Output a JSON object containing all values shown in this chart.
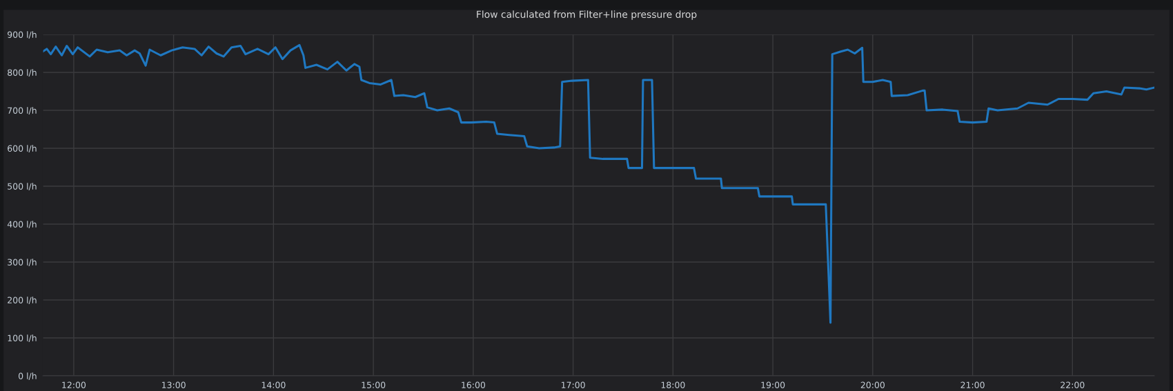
{
  "chart_data": {
    "type": "line",
    "title": "Flow calculated from Filter+line pressure drop",
    "x": [
      11.69,
      11.73,
      11.77,
      11.82,
      11.88,
      11.93,
      11.99,
      12.04,
      12.16,
      12.23,
      12.34,
      12.46,
      12.53,
      12.61,
      12.66,
      12.72,
      12.76,
      12.87,
      12.98,
      13.09,
      13.21,
      13.28,
      13.35,
      13.43,
      13.5,
      13.58,
      13.67,
      13.72,
      13.84,
      13.95,
      14.02,
      14.09,
      14.17,
      14.26,
      14.3,
      14.32,
      14.43,
      14.54,
      14.64,
      14.73,
      14.81,
      14.86,
      14.88,
      14.96,
      15.07,
      15.18,
      15.21,
      15.3,
      15.42,
      15.51,
      15.54,
      15.64,
      15.76,
      15.85,
      15.88,
      15.98,
      16.13,
      16.21,
      16.24,
      16.36,
      16.51,
      16.54,
      16.66,
      16.81,
      16.87,
      16.89,
      16.99,
      17.15,
      17.17,
      17.3,
      17.54,
      17.555,
      17.69,
      17.7,
      17.79,
      17.81,
      18.0,
      18.21,
      18.23,
      18.48,
      18.49,
      18.7,
      18.85,
      18.865,
      19.19,
      19.2,
      19.53,
      19.577,
      19.595,
      19.68,
      19.75,
      19.82,
      19.895,
      19.906,
      20.0,
      20.1,
      20.18,
      20.19,
      20.35,
      20.5,
      20.52,
      20.54,
      20.7,
      20.85,
      20.87,
      21.0,
      21.14,
      21.16,
      21.25,
      21.45,
      21.56,
      21.75,
      21.86,
      22.0,
      22.15,
      22.21,
      22.34,
      22.49,
      22.52,
      22.67,
      22.74,
      22.82
    ],
    "series": [
      {
        "color": "#1f78c1",
        "values": [
          855,
          862,
          848,
          868,
          845,
          870,
          848,
          866,
          842,
          860,
          853,
          858,
          845,
          858,
          850,
          818,
          860,
          845,
          858,
          866,
          862,
          845,
          868,
          850,
          842,
          866,
          870,
          848,
          862,
          848,
          866,
          835,
          858,
          872,
          845,
          812,
          820,
          808,
          828,
          805,
          822,
          815,
          780,
          772,
          768,
          780,
          738,
          740,
          735,
          745,
          708,
          700,
          705,
          695,
          668,
          668,
          670,
          668,
          638,
          635,
          632,
          605,
          600,
          602,
          605,
          775,
          778,
          780,
          575,
          572,
          572,
          548,
          548,
          780,
          780,
          548,
          548,
          548,
          520,
          520,
          495,
          495,
          495,
          473,
          473,
          452,
          452,
          140,
          848,
          855,
          860,
          850,
          865,
          775,
          775,
          780,
          775,
          738,
          740,
          752,
          752,
          700,
          702,
          698,
          670,
          668,
          670,
          705,
          700,
          705,
          720,
          715,
          730,
          730,
          728,
          745,
          750,
          742,
          760,
          758,
          755,
          760
        ]
      }
    ],
    "xlim": [
      11.69,
      22.82
    ],
    "ylim": [
      0,
      900
    ],
    "xticks": [
      {
        "value": 12,
        "label": "12:00"
      },
      {
        "value": 13,
        "label": "13:00"
      },
      {
        "value": 14,
        "label": "14:00"
      },
      {
        "value": 15,
        "label": "15:00"
      },
      {
        "value": 16,
        "label": "16:00"
      },
      {
        "value": 17,
        "label": "17:00"
      },
      {
        "value": 18,
        "label": "18:00"
      },
      {
        "value": 19,
        "label": "19:00"
      },
      {
        "value": 20,
        "label": "20:00"
      },
      {
        "value": 21,
        "label": "21:00"
      },
      {
        "value": 22,
        "label": "22:00"
      }
    ],
    "yticks": [
      {
        "value": 0,
        "label": "0 l/h"
      },
      {
        "value": 100,
        "label": "100 l/h"
      },
      {
        "value": 200,
        "label": "200 l/h"
      },
      {
        "value": 300,
        "label": "300 l/h"
      },
      {
        "value": 400,
        "label": "400 l/h"
      },
      {
        "value": 500,
        "label": "500 l/h"
      },
      {
        "value": 600,
        "label": "600 l/h"
      },
      {
        "value": 700,
        "label": "700 l/h"
      },
      {
        "value": 800,
        "label": "800 l/h"
      },
      {
        "value": 900,
        "label": "900 l/h"
      }
    ],
    "grid": true,
    "line_style": "solid",
    "marker": "none"
  }
}
